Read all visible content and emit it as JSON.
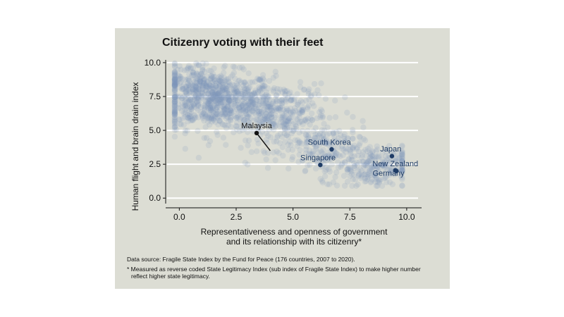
{
  "chart_data": {
    "type": "scatter",
    "title": "Citizenry voting with their feet",
    "xlabel_lines": [
      "Representativeness and openness of government",
      "and its relationship with its citizenry*"
    ],
    "ylabel": "Human flight and brain drain index",
    "xlim": [
      -0.6,
      10.5
    ],
    "ylim": [
      -0.3,
      10.1
    ],
    "x_ticks": [
      0.0,
      2.5,
      5.0,
      7.5,
      10.0
    ],
    "x_tick_labels": [
      "0.0",
      "2.5",
      "5.0",
      "7.5",
      "10.0"
    ],
    "y_ticks": [
      0.0,
      2.5,
      5.0,
      7.5,
      10.0
    ],
    "y_tick_labels": [
      "0.0",
      "2.5",
      "5.0",
      "7.5",
      "10.0"
    ],
    "grid": "horizontal",
    "colors": {
      "background": "#dcddd4",
      "points": "#7d93b8",
      "highlight": "#1f3c66",
      "malaysia": "#111111",
      "grid": "#ffffff"
    },
    "highlighted": [
      {
        "name": "Malaysia",
        "x": 3.4,
        "y": 4.8,
        "label_x": 3.4,
        "label_y": 5.15,
        "line_to": [
          4.0,
          3.5
        ],
        "color": "dark"
      },
      {
        "name": "South Korea",
        "x": 6.7,
        "y": 3.6,
        "label_x": 6.6,
        "label_y": 3.95,
        "color": "blue"
      },
      {
        "name": "Singapore",
        "x": 6.2,
        "y": 2.45,
        "label_x": 6.1,
        "label_y": 2.8,
        "color": "blue"
      },
      {
        "name": "Japan",
        "x": 9.35,
        "y": 3.1,
        "label_x": 9.3,
        "label_y": 3.45,
        "color": "blue"
      },
      {
        "name": "New Zealand",
        "x": 9.5,
        "y": 2.05,
        "label_x": 9.5,
        "label_y": 2.35,
        "color": "blue"
      },
      {
        "name": "Germany",
        "x": 9.55,
        "y": 2.0,
        "label_x": 9.2,
        "label_y": 1.65,
        "color": "blue"
      }
    ],
    "point_clusters": [
      {
        "cx": 1.6,
        "cy": 7.2,
        "sx": 1.3,
        "sy": 1.05,
        "n": 780
      },
      {
        "cx": 4.4,
        "cy": 6.0,
        "sx": 1.1,
        "sy": 1.2,
        "n": 380
      },
      {
        "cx": 6.6,
        "cy": 3.4,
        "sx": 0.9,
        "sy": 1.0,
        "n": 180
      },
      {
        "cx": 8.6,
        "cy": 2.3,
        "sx": 0.9,
        "sy": 0.75,
        "n": 230
      },
      {
        "cx": 0.4,
        "cy": 8.8,
        "sx": 0.8,
        "sy": 0.6,
        "n": 120
      }
    ]
  },
  "notes": {
    "source": "Data source: Fragile State Index by the Fund for Peace (176 countries, 2007  to 2020).",
    "footnote_line1": "* Measured as reverse coded State Legitimacy Index (sub index of Fragile State Index) to make higher number",
    "footnote_line2": "reflect higher state legitimacy."
  }
}
